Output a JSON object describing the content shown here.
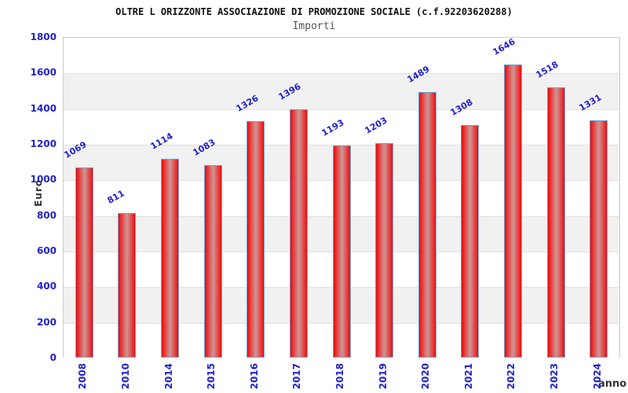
{
  "header": {
    "title": "OLTRE L ORIZZONTE ASSOCIAZIONE DI PROMOZIONE SOCIALE (c.f.92203620288)",
    "subtitle": "Importi"
  },
  "axes": {
    "y_label": "Euro",
    "x_label": "anno"
  },
  "colors": {
    "bar_red": "#ee1111",
    "bar_center": "#cf8f8f",
    "bar_border": "#6fa8dc",
    "tick_blue": "#2222cc",
    "band_gray": "#f1f1f1",
    "plot_border": "#cccccc",
    "title_black": "#111111",
    "subtitle_gray": "#555555",
    "axis_title_gray": "#333333"
  },
  "chart_data": {
    "type": "bar",
    "title": "OLTRE L ORIZZONTE ASSOCIAZIONE DI PROMOZIONE SOCIALE (c.f.92203620288)",
    "subtitle": "Importi",
    "categories": [
      "2008",
      "2010",
      "2014",
      "2015",
      "2016",
      "2017",
      "2018",
      "2019",
      "2020",
      "2021",
      "2022",
      "2023",
      "2024"
    ],
    "values": [
      1069,
      811,
      1114,
      1083,
      1326,
      1396,
      1193,
      1203,
      1489,
      1308,
      1646,
      1518,
      1331
    ],
    "xlabel": "anno",
    "ylabel": "Euro",
    "ylim": [
      0,
      1800
    ],
    "ytick_step": 200,
    "yticks": [
      0,
      200,
      400,
      600,
      800,
      1000,
      1200,
      1400,
      1600,
      1800
    ],
    "grid": true,
    "band_shading": true,
    "legend": false,
    "bar_labels_rotation_deg": -30,
    "xtick_rotation_deg": -90
  }
}
